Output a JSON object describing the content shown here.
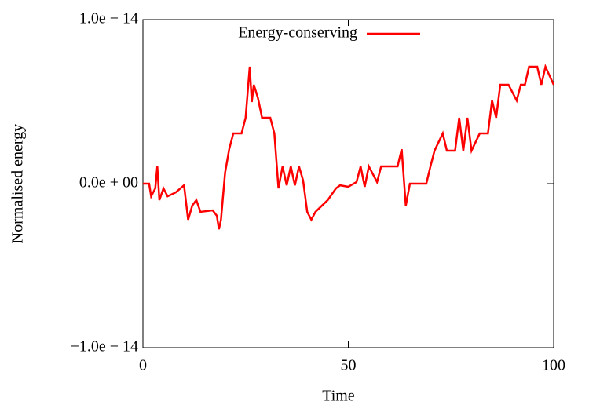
{
  "chart_data": {
    "type": "line",
    "x_label": "Time",
    "y_label": "Normalised energy",
    "x": [
      0,
      1.5,
      2,
      3,
      3.5,
      4,
      5,
      6,
      8,
      10,
      11,
      12,
      13,
      14,
      17,
      18,
      18.5,
      19,
      20,
      21,
      22,
      24,
      25,
      26,
      26.5,
      27,
      28,
      29,
      31,
      32,
      33,
      34,
      35,
      36,
      37,
      38,
      39,
      40,
      41,
      42,
      43,
      45,
      47,
      48,
      50,
      52,
      53,
      54,
      55,
      57,
      58,
      60,
      62,
      63,
      64,
      65,
      68,
      69,
      70,
      71,
      73,
      74,
      76,
      77,
      78,
      79,
      80,
      82,
      84,
      85,
      86,
      87,
      89,
      91,
      92,
      93,
      94,
      96,
      97,
      98,
      100
    ],
    "series": [
      {
        "name": "Energy-conserving",
        "color": "#ff0000",
        "values": [
          0,
          0,
          -7.7e-16,
          -2.9e-16,
          1.05e-15,
          -1e-15,
          -2.9e-16,
          -7.7e-16,
          -5.3e-16,
          -1e-16,
          -2.2e-15,
          -1.34e-15,
          -1e-15,
          -1.72e-15,
          -1.63e-15,
          -1.96e-15,
          -2.78e-15,
          -2.2e-15,
          6.7e-16,
          2.1e-15,
          3.06e-15,
          3.06e-15,
          4.02e-15,
          7.13e-15,
          4.98e-15,
          6.03e-15,
          5.22e-15,
          4.02e-15,
          4.02e-15,
          3.06e-15,
          -2.9e-16,
          1.05e-15,
          -1e-16,
          1.05e-15,
          -1e-16,
          1.05e-15,
          1.9e-16,
          -1.72e-15,
          -2.2e-15,
          -1.72e-15,
          -1.48e-15,
          -1e-15,
          -2.9e-16,
          -1e-16,
          -1.9e-16,
          1e-16,
          1.05e-15,
          -1.9e-16,
          1.05e-15,
          1e-16,
          1.05e-15,
          1.05e-15,
          1.05e-15,
          2.1e-15,
          -1.34e-15,
          0,
          0,
          0,
          1.05e-15,
          2.01e-15,
          3.06e-15,
          2.01e-15,
          2.01e-15,
          4.02e-15,
          2.01e-15,
          4.02e-15,
          2.01e-15,
          3.06e-15,
          3.06e-15,
          5.07e-15,
          4.02e-15,
          6.03e-15,
          6.03e-15,
          5.07e-15,
          6.03e-15,
          6.03e-15,
          7.13e-15,
          7.13e-15,
          6.03e-15,
          7.13e-15,
          6.03e-15
        ]
      }
    ],
    "xlim": [
      0,
      100
    ],
    "xticks": [
      0,
      50,
      100
    ],
    "ylim": [
      -1e-14,
      1e-14
    ],
    "yticks": [
      {
        "value": -1e-14,
        "label": "−1.0e − 14"
      },
      {
        "value": 0,
        "label": "0.0e + 00"
      },
      {
        "value": 1e-14,
        "label": "1.0e − 14"
      }
    ],
    "grid": false
  }
}
